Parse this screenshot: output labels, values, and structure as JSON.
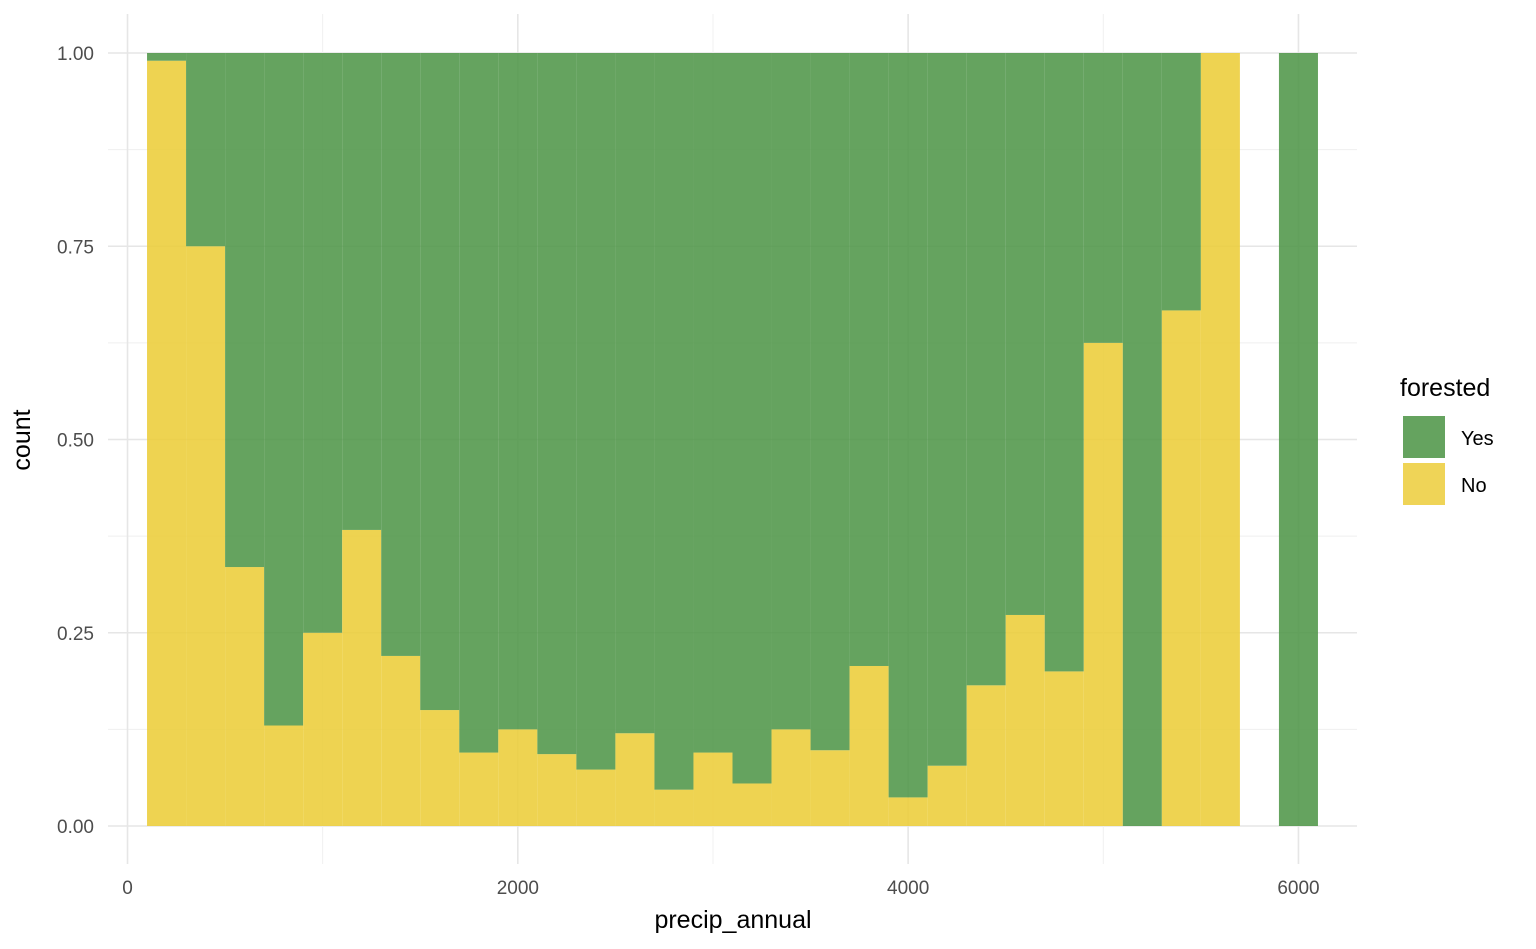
{
  "chart_data": {
    "type": "bar",
    "subtype": "histogram-fill",
    "title": "",
    "xlabel": "precip_annual",
    "ylabel": "count",
    "xlim": [
      -100,
      6300
    ],
    "ylim": [
      0,
      1.0
    ],
    "x_ticks": [
      0,
      2000,
      4000,
      6000
    ],
    "x_tick_labels": [
      "0",
      "2000",
      "4000",
      "6000"
    ],
    "y_ticks": [
      0,
      0.25,
      0.5,
      0.75,
      1.0
    ],
    "y_tick_labels": [
      "0.00",
      "0.25",
      "0.50",
      "0.75",
      "1.00"
    ],
    "grid": true,
    "legend": {
      "title": "forested",
      "position": "right",
      "entries": [
        {
          "label": "Yes",
          "color": "#4a9343"
        },
        {
          "label": "No",
          "color": "#eccd39"
        }
      ]
    },
    "bin_width": 200,
    "bin_starts": [
      100,
      300,
      500,
      700,
      900,
      1100,
      1300,
      1500,
      1700,
      1900,
      2100,
      2300,
      2500,
      2700,
      2900,
      3100,
      3300,
      3500,
      3700,
      3900,
      4100,
      4300,
      4500,
      4700,
      4900,
      5100,
      5300,
      5500,
      5700,
      5900
    ],
    "series": [
      {
        "name": "No",
        "color": "#eccd39",
        "values": [
          0.99,
          0.75,
          0.335,
          0.13,
          0.25,
          0.383,
          0.22,
          0.15,
          0.095,
          0.125,
          0.093,
          0.073,
          0.12,
          0.047,
          0.095,
          0.055,
          0.125,
          0.098,
          0.207,
          0.037,
          0.078,
          0.182,
          0.273,
          0.2,
          0.625,
          0,
          0.667,
          1.0,
          null,
          0
        ]
      },
      {
        "name": "Yes",
        "color": "#4a9343",
        "values": [
          0.01,
          0.25,
          0.665,
          0.87,
          0.75,
          0.617,
          0.78,
          0.85,
          0.905,
          0.875,
          0.907,
          0.927,
          0.88,
          0.953,
          0.905,
          0.945,
          0.875,
          0.902,
          0.793,
          0.963,
          0.922,
          0.818,
          0.727,
          0.8,
          0.375,
          1.0,
          0.333,
          0,
          null,
          1.0
        ]
      }
    ]
  }
}
